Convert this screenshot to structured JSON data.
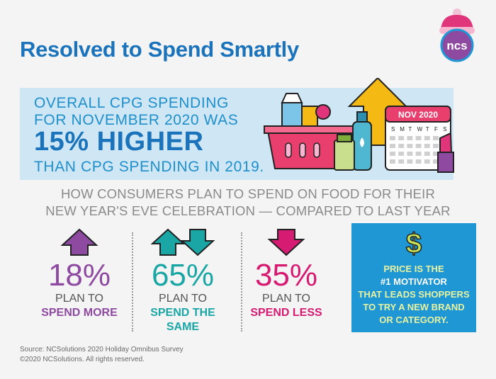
{
  "title": "Resolved to Spend Smartly",
  "logo_text": "ncs",
  "banner": {
    "line1": "OVERALL CPG SPENDING",
    "line2": "FOR NOVEMBER 2020 WAS",
    "line3": "15% HIGHER",
    "line4": "THAN CPG SPENDING IN 2019.",
    "calendar_title": "NOV 2020",
    "calendar_days": [
      "S",
      "M",
      "T",
      "W",
      "T",
      "F",
      "S"
    ]
  },
  "question": {
    "line1": "HOW CONSUMERS PLAN TO SPEND ON FOOD FOR THEIR",
    "line2": "NEW YEAR'S EVE CELEBRATION — COMPARED TO LAST YEAR"
  },
  "stats": [
    {
      "pct": "18%",
      "line1": "PLAN TO",
      "line2": "SPEND MORE",
      "line3": "",
      "icon": "arrow-up-icon",
      "color": "#8e4aa0"
    },
    {
      "pct": "65%",
      "line1": "PLAN TO",
      "line2": "SPEND THE",
      "line3": "SAME",
      "icon": "arrows-up-down-icon",
      "color": "#1ba6a6"
    },
    {
      "pct": "35%",
      "line1": "PLAN TO",
      "line2": "SPEND LESS",
      "line3": "",
      "icon": "arrow-down-icon",
      "color": "#d61c72"
    }
  ],
  "motivator": {
    "icon": "dollar-sign-icon",
    "line1": "PRICE IS THE",
    "line2": "#1 MOTIVATOR",
    "line3": "THAT LEADS SHOPPERS",
    "line4": "TO TRY A NEW BRAND",
    "line5": "OR CATEGORY."
  },
  "source": {
    "line1": "Source: NCSolutions 2020 Holiday Omnibus Survey",
    "line2": "©2020 NCSolutions. All rights reserved."
  },
  "colors": {
    "title": "#1b74bb",
    "banner_bg": "#cfe7f4",
    "banner_text": "#1f8fcc",
    "motivator_bg": "#1f97d4",
    "motivator_text": "#e8f2a0"
  }
}
